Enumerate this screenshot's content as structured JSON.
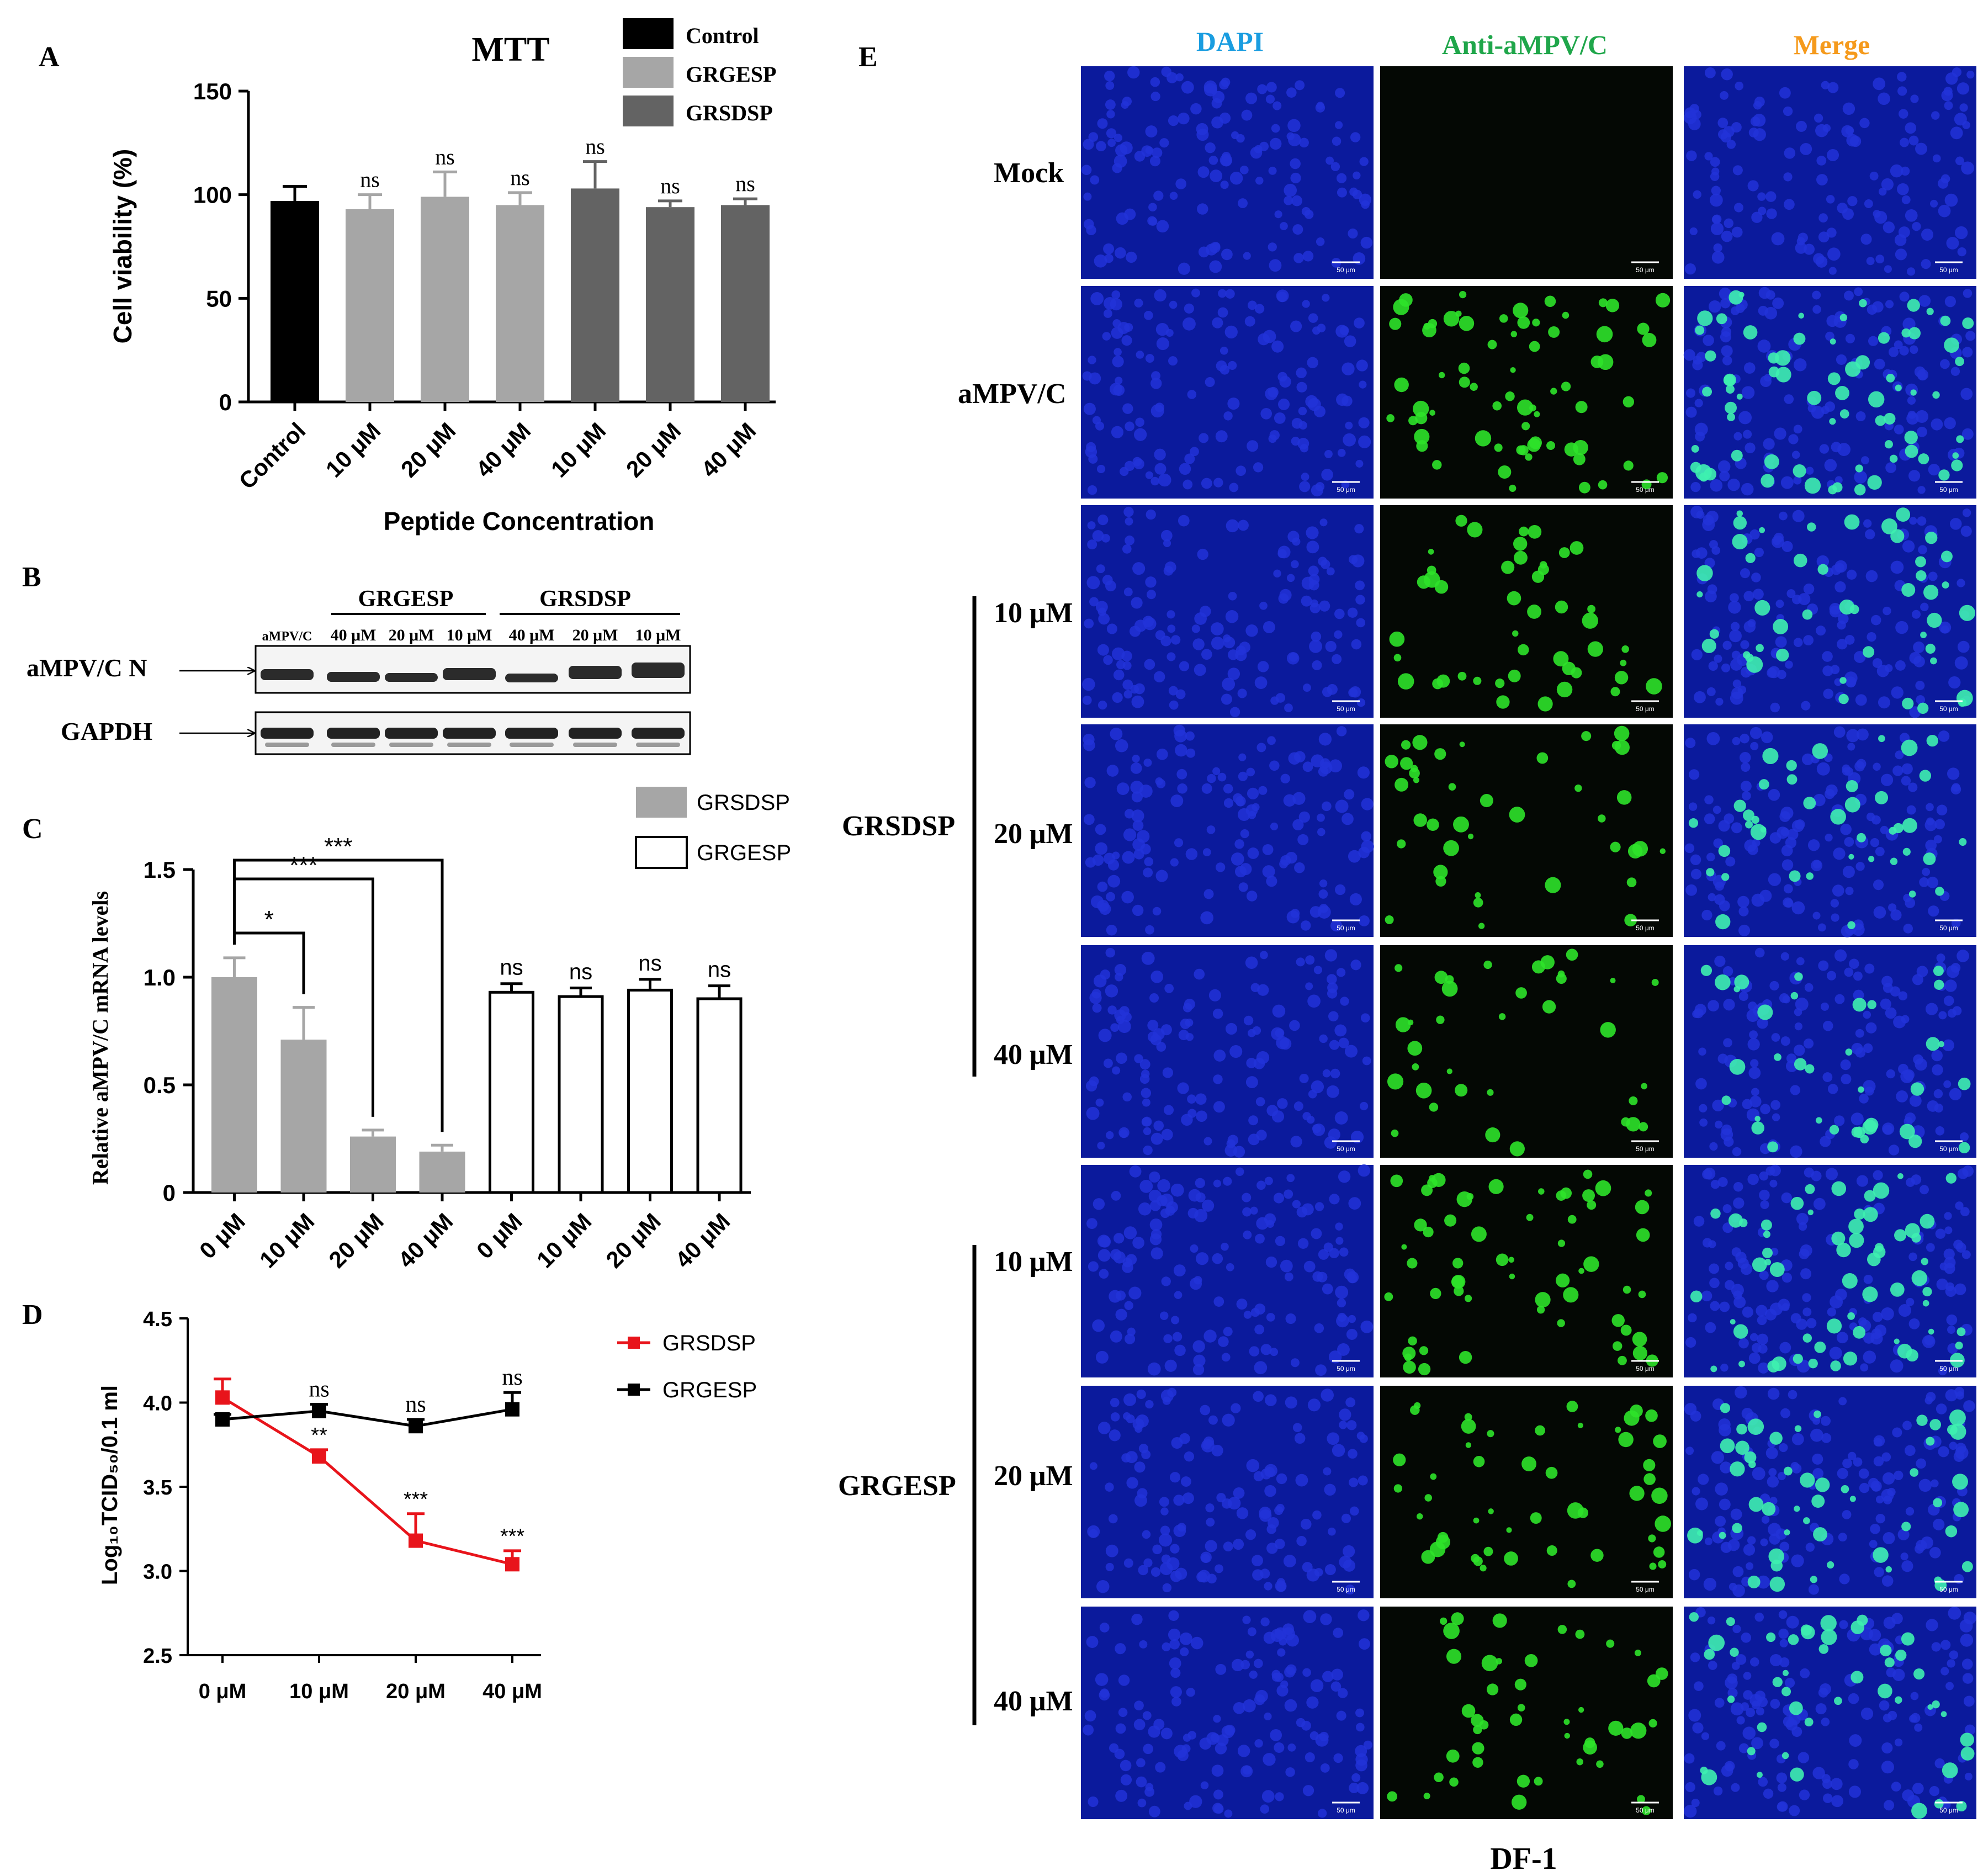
{
  "panel_labels": {
    "A": "A",
    "B": "B",
    "C": "C",
    "D": "D",
    "E": "E"
  },
  "chart_data": [
    {
      "panel": "A",
      "type": "bar",
      "title": "MTT",
      "xlabel": "Peptide Concentration",
      "ylabel": "Cell viability (%)",
      "ylim": [
        0,
        150
      ],
      "yticks": [
        "0",
        "50",
        "100",
        "150"
      ],
      "legend": {
        "position": "top-right",
        "entries": [
          "Control",
          "GRGESP",
          "GRSDSP"
        ]
      },
      "categories": [
        "Control",
        "10 μM",
        "20 μM",
        "40 μM",
        "10 μM",
        "20 μM",
        "40 μM"
      ],
      "values": [
        97,
        93,
        99,
        95,
        103,
        94,
        95
      ],
      "errors": [
        7,
        7,
        12,
        6,
        13,
        3,
        3
      ],
      "groups": [
        "Control",
        "GRGESP",
        "GRGESP",
        "GRGESP",
        "GRSDSP",
        "GRSDSP",
        "GRSDSP"
      ],
      "annotations": [
        "",
        "ns",
        "ns",
        "ns",
        "ns",
        "ns",
        "ns"
      ],
      "colors": {
        "Control": "#000000",
        "GRGESP": "#a6a6a6",
        "GRSDSP": "#636363"
      }
    },
    {
      "panel": "C",
      "type": "bar",
      "ylabel": "Relative aMPV/C mRNA levels",
      "ylim": [
        0,
        1.5
      ],
      "yticks": [
        "0",
        "0.5",
        "1.0",
        "1.5"
      ],
      "legend": {
        "position": "top-right",
        "entries": [
          "GRSDSP",
          "GRGESP"
        ]
      },
      "categories": [
        "0 μM",
        "10 μM",
        "20 μM",
        "40 μM",
        "0 μM",
        "10 μM",
        "20 μM",
        "40 μM"
      ],
      "values": [
        1.0,
        0.71,
        0.26,
        0.19,
        0.93,
        0.91,
        0.94,
        0.9
      ],
      "errors": [
        0.09,
        0.15,
        0.03,
        0.03,
        0.04,
        0.04,
        0.05,
        0.06
      ],
      "groups": [
        "GRSDSP",
        "GRSDSP",
        "GRSDSP",
        "GRSDSP",
        "GRGESP",
        "GRGESP",
        "GRGESP",
        "GRGESP"
      ],
      "annotations": [
        "",
        "",
        "",
        "",
        "ns",
        "ns",
        "ns",
        "ns"
      ],
      "brackets": [
        {
          "from": 0,
          "to": 1,
          "label": "*"
        },
        {
          "from": 0,
          "to": 2,
          "label": "***"
        },
        {
          "from": 0,
          "to": 3,
          "label": "***"
        }
      ],
      "colors": {
        "GRSDSP": "#a6a6a6",
        "GRGESP": "#ffffff"
      }
    },
    {
      "panel": "D",
      "type": "line",
      "ylabel": "Log₁₀TCID₅₀/0.1 ml",
      "ylim": [
        2.5,
        4.5
      ],
      "yticks": [
        "2.5",
        "3.0",
        "3.5",
        "4.0",
        "4.5"
      ],
      "categories": [
        "0 μM",
        "10 μM",
        "20 μM",
        "40 μM"
      ],
      "legend": {
        "position": "top-right"
      },
      "series": [
        {
          "name": "GRSDSP",
          "values": [
            4.03,
            3.68,
            3.18,
            3.04
          ],
          "errors": [
            0.11,
            0.04,
            0.16,
            0.08
          ],
          "color": "#e8141b",
          "annotations": [
            "",
            "**",
            "***",
            "***"
          ]
        },
        {
          "name": "GRGESP",
          "values": [
            3.9,
            3.95,
            3.86,
            3.96
          ],
          "errors": [
            0.03,
            0.04,
            0.04,
            0.1
          ],
          "color": "#000000",
          "annotations": [
            "",
            "ns",
            "ns",
            "ns"
          ]
        }
      ]
    }
  ],
  "blot": {
    "group_labels": [
      "GRGESP",
      "GRSDSP"
    ],
    "lane_labels": [
      "aMPV/C",
      "40 μM",
      "20 μM",
      "10 μM",
      "40 μM",
      "20 μM",
      "10 μM"
    ],
    "row_labels": [
      "aMPV/C N",
      "GAPDH"
    ]
  },
  "microscopy": {
    "columns": [
      {
        "label": "DAPI",
        "color": "#1a9de0"
      },
      {
        "label": "Anti-aMPV/C",
        "color": "#1fa64a"
      },
      {
        "label": "Merge",
        "color": "#f59a1c"
      }
    ],
    "row_labels": [
      "Mock",
      "aMPV/C",
      "10 μM",
      "20 μM",
      "40 μM",
      "10 μM",
      "20 μM",
      "40 μM"
    ],
    "group_labels": [
      "GRSDSP",
      "GRGESP"
    ],
    "scale_bar": "50 μm",
    "footer": "DF-1"
  }
}
